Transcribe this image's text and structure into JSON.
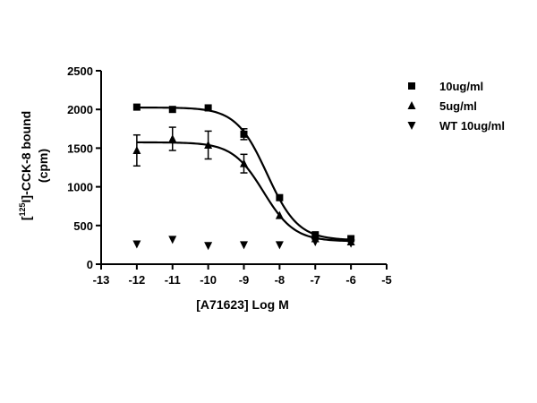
{
  "chart_data": {
    "type": "scatter",
    "title": "",
    "xlabel": "[A71623] Log M",
    "ylabel_line1_prefix": "[",
    "ylabel_line1_sup": "125",
    "ylabel_line1_rest": "I]-CCK-8 bound",
    "ylabel_line2": "(cpm)",
    "xlim": [
      -13,
      -5
    ],
    "ylim": [
      0,
      2500
    ],
    "xticks": [
      -13,
      -12,
      -11,
      -10,
      -9,
      -8,
      -7,
      -6,
      -5
    ],
    "yticks": [
      0,
      500,
      1000,
      1500,
      2000,
      2500
    ],
    "legend_position": "top-right",
    "series": [
      {
        "name": "10ug/ml",
        "marker": "square",
        "x": [
          -12,
          -11,
          -10,
          -9,
          -8,
          -7,
          -6
        ],
        "y": [
          2030,
          2000,
          2020,
          1680,
          860,
          380,
          330
        ],
        "err": [
          0,
          0,
          0,
          70,
          0,
          0,
          0
        ],
        "fit": {
          "top": 2025,
          "bottom": 310,
          "log_ic50": -8.35,
          "hill": 1.0
        }
      },
      {
        "name": "5ug/ml",
        "marker": "triangle-up",
        "x": [
          -12,
          -11,
          -10,
          -9,
          -8,
          -7,
          -6
        ],
        "y": [
          1470,
          1620,
          1540,
          1300,
          630,
          330,
          290
        ],
        "err": [
          200,
          150,
          180,
          120,
          0,
          0,
          0
        ],
        "fit": {
          "top": 1575,
          "bottom": 295,
          "log_ic50": -8.45,
          "hill": 1.0
        }
      },
      {
        "name": "WT 10ug/ml",
        "marker": "triangle-down",
        "x": [
          -12,
          -11,
          -10,
          -9,
          -8,
          -7,
          -6
        ],
        "y": [
          260,
          320,
          240,
          250,
          250,
          290,
          270
        ],
        "err": [
          0,
          0,
          0,
          0,
          0,
          0,
          0
        ]
      }
    ]
  }
}
